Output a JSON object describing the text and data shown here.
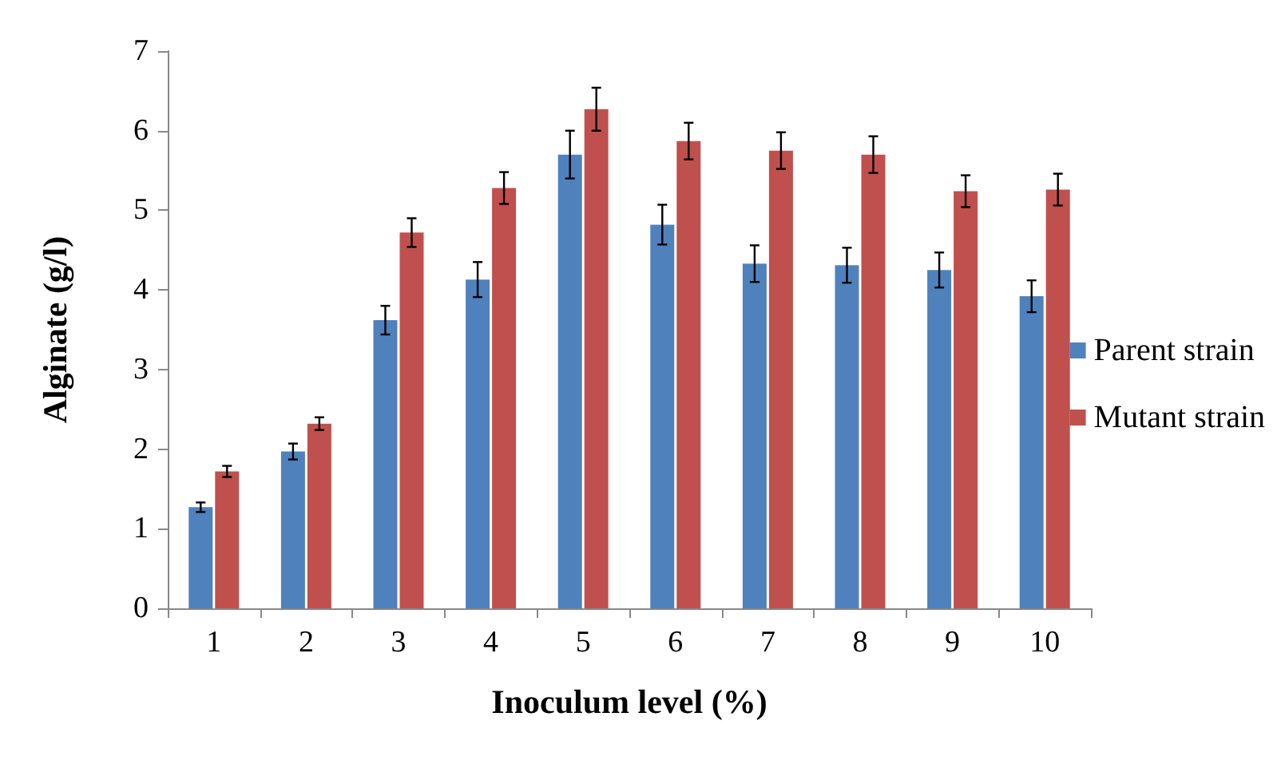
{
  "chart_data": {
    "type": "bar",
    "xlabel": "Inoculum level (%)",
    "ylabel": "Alginate (g/l)",
    "categories": [
      "1",
      "2",
      "3",
      "4",
      "5",
      "6",
      "7",
      "8",
      "9",
      "10"
    ],
    "series": [
      {
        "name": "Parent strain",
        "color": "#4f81bd",
        "values": [
          1.27,
          1.97,
          3.62,
          4.13,
          5.7,
          4.82,
          4.33,
          4.31,
          4.25,
          3.92
        ],
        "errors": [
          0.06,
          0.1,
          0.18,
          0.22,
          0.3,
          0.25,
          0.23,
          0.22,
          0.22,
          0.2
        ]
      },
      {
        "name": "Mutant strain",
        "color": "#c0504d",
        "values": [
          1.72,
          2.32,
          4.72,
          5.28,
          6.27,
          5.87,
          5.75,
          5.7,
          5.24,
          5.26
        ],
        "errors": [
          0.07,
          0.08,
          0.18,
          0.2,
          0.27,
          0.23,
          0.23,
          0.23,
          0.2,
          0.2
        ]
      }
    ],
    "ylim": [
      0,
      7
    ],
    "yticks": [
      0,
      1,
      2,
      3,
      4,
      5,
      6,
      7
    ],
    "grid": false,
    "legend": "right"
  }
}
